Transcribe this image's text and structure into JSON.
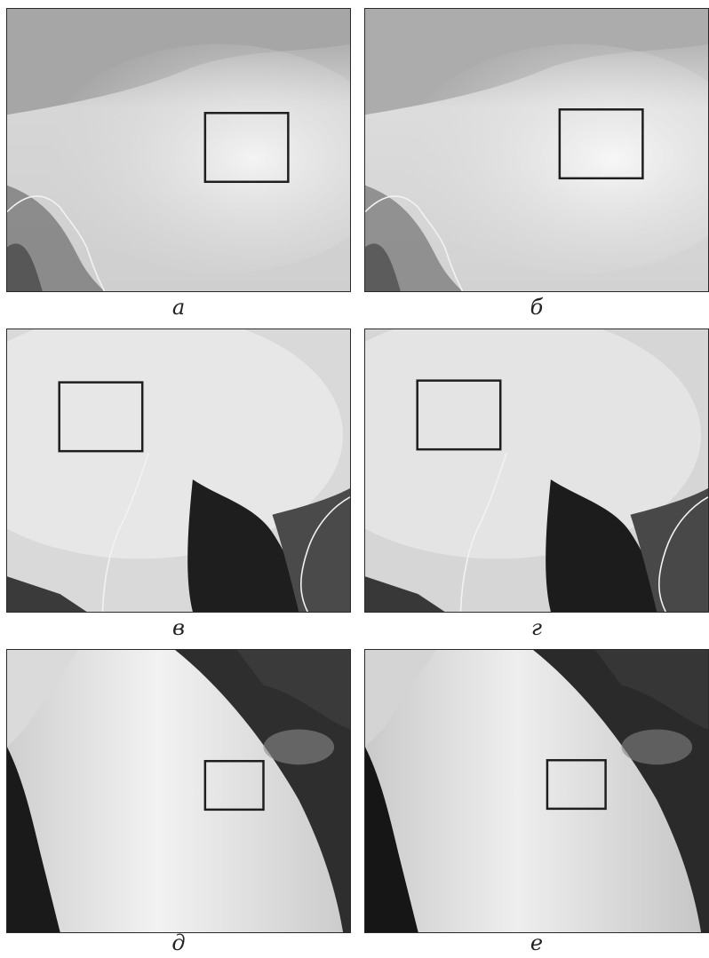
{
  "figure": {
    "panels": [
      {
        "id": "a",
        "label": "а"
      },
      {
        "id": "b",
        "label": "б"
      },
      {
        "id": "v",
        "label": "в"
      },
      {
        "id": "g",
        "label": "г"
      },
      {
        "id": "d",
        "label": "д"
      },
      {
        "id": "e",
        "label": "е"
      }
    ]
  },
  "colors": {
    "frame": "#2a2a2a",
    "cloud": "#e8e8e8",
    "dark_surface": "#1f1f1f",
    "roi_box": "#1e1e1e"
  }
}
